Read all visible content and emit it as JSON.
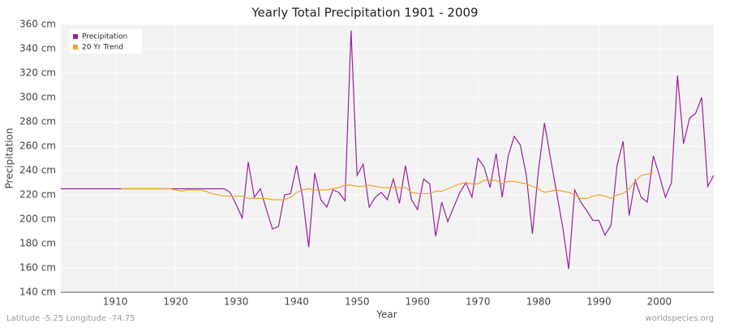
{
  "chart_data": {
    "type": "line",
    "title": "Yearly Total Precipitation 1901 - 2009",
    "x_label": "Year",
    "y_label": "Precipitation",
    "footer_left": "Latitude -5.25 Longitude -74.75",
    "footer_right": "worldspecies.org",
    "legend": "top-left",
    "grid": true,
    "xlim": [
      1901,
      2009
    ],
    "xticks": [
      1910,
      1920,
      1930,
      1940,
      1950,
      1960,
      1970,
      1980,
      1990,
      2000
    ],
    "ylim": [
      140,
      360
    ],
    "yticks": [
      {
        "value": 140,
        "label": "140 cm"
      },
      {
        "value": 160,
        "label": "160 cm"
      },
      {
        "value": 180,
        "label": "180 cm"
      },
      {
        "value": 200,
        "label": "200 cm"
      },
      {
        "value": 220,
        "label": "220 cm"
      },
      {
        "value": 240,
        "label": "240 cm"
      },
      {
        "value": 260,
        "label": "260 cm"
      },
      {
        "value": 280,
        "label": "280 cm"
      },
      {
        "value": 300,
        "label": "300 cm"
      },
      {
        "value": 320,
        "label": "320 cm"
      },
      {
        "value": 340,
        "label": "340 cm"
      },
      {
        "value": 360,
        "label": "360 cm"
      }
    ],
    "x": [
      1901,
      1902,
      1903,
      1904,
      1905,
      1906,
      1907,
      1908,
      1909,
      1910,
      1911,
      1912,
      1913,
      1914,
      1915,
      1916,
      1917,
      1918,
      1919,
      1920,
      1921,
      1922,
      1923,
      1924,
      1925,
      1926,
      1927,
      1928,
      1929,
      1930,
      1931,
      1932,
      1933,
      1934,
      1935,
      1936,
      1937,
      1938,
      1939,
      1940,
      1941,
      1942,
      1943,
      1944,
      1945,
      1946,
      1947,
      1948,
      1949,
      1950,
      1951,
      1952,
      1953,
      1954,
      1955,
      1956,
      1957,
      1958,
      1959,
      1960,
      1961,
      1962,
      1963,
      1964,
      1965,
      1966,
      1967,
      1968,
      1969,
      1970,
      1971,
      1972,
      1973,
      1974,
      1975,
      1976,
      1977,
      1978,
      1979,
      1980,
      1981,
      1982,
      1983,
      1984,
      1985,
      1986,
      1987,
      1988,
      1989,
      1990,
      1991,
      1992,
      1993,
      1994,
      1995,
      1996,
      1997,
      1998,
      1999,
      2000,
      2001,
      2002,
      2003,
      2004,
      2005,
      2006,
      2007,
      2008,
      2009
    ],
    "series": [
      {
        "name": "Precipitation",
        "color": "#9b1fa0",
        "values": [
          225,
          225,
          225,
          225,
          225,
          225,
          225,
          225,
          225,
          225,
          225,
          225,
          225,
          225,
          225,
          225,
          225,
          225,
          225,
          225,
          225,
          225,
          225,
          225,
          225,
          225,
          225,
          225,
          222,
          212,
          201,
          247,
          218,
          225,
          208,
          192,
          194,
          220,
          221,
          244,
          218,
          177,
          238,
          216,
          210,
          224,
          222,
          215,
          355,
          236,
          245,
          210,
          218,
          222,
          216,
          233,
          213,
          244,
          216,
          208,
          233,
          229,
          186,
          214,
          198,
          210,
          222,
          230,
          218,
          250,
          243,
          226,
          254,
          218,
          252,
          268,
          261,
          236,
          188,
          240,
          279,
          250,
          222,
          194,
          159,
          224,
          214,
          207,
          199,
          199,
          187,
          195,
          244,
          264,
          203,
          232,
          218,
          214,
          252,
          236,
          218,
          230,
          318,
          262,
          283,
          287,
          300,
          227,
          236
        ]
      },
      {
        "name": "20 Yr Trend",
        "color": "#f5a623",
        "values": [
          null,
          null,
          null,
          null,
          null,
          null,
          null,
          null,
          null,
          null,
          225,
          225,
          225,
          225,
          225,
          225,
          225,
          225,
          225,
          224,
          223,
          224,
          224,
          224,
          223,
          221,
          220,
          219,
          219,
          219,
          219,
          217,
          217,
          217,
          217,
          216,
          216,
          216,
          218,
          222,
          224,
          225,
          224,
          224,
          224,
          225,
          226,
          228,
          228,
          227,
          227,
          228,
          227,
          226,
          226,
          226,
          226,
          226,
          222,
          221,
          221,
          221,
          223,
          223,
          225,
          227,
          229,
          230,
          229,
          229,
          232,
          232,
          232,
          229,
          231,
          231,
          230,
          229,
          227,
          225,
          222,
          223,
          224,
          223,
          222,
          220,
          217,
          217,
          219,
          220,
          219,
          217,
          220,
          221,
          225,
          231,
          236,
          237,
          238,
          null,
          null,
          null,
          null,
          null,
          null,
          null,
          null,
          null,
          null
        ]
      }
    ]
  }
}
